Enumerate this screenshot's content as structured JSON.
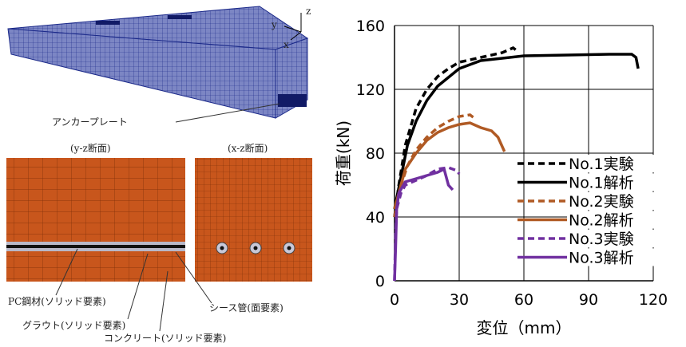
{
  "chart_data": {
    "type": "line",
    "xlabel": "変位（mm）",
    "ylabel": "荷重(kN)",
    "xlim": [
      0,
      120
    ],
    "xticks": [
      0,
      30,
      60,
      90,
      120
    ],
    "ylim": [
      0,
      160
    ],
    "yticks": [
      0,
      40,
      80,
      120,
      160
    ],
    "grid": true,
    "legend": "lower right",
    "series": [
      {
        "name": "No.1実験",
        "color": "#000000",
        "dashed": true,
        "x": [
          0,
          2,
          5,
          10,
          15,
          20,
          25,
          30,
          40,
          50,
          55,
          57
        ],
        "values": [
          40,
          60,
          85,
          108,
          120,
          128,
          133,
          137,
          140,
          143,
          146,
          144
        ]
      },
      {
        "name": "No.1解析",
        "color": "#000000",
        "dashed": false,
        "x": [
          0,
          3,
          6,
          10,
          15,
          20,
          30,
          40,
          60,
          80,
          100,
          110,
          112,
          113
        ],
        "values": [
          45,
          65,
          85,
          100,
          113,
          122,
          133,
          138,
          141,
          141.5,
          142,
          142,
          140,
          133
        ]
      },
      {
        "name": "No.2実験",
        "color": "#b05a24",
        "dashed": true,
        "x": [
          0,
          3,
          6,
          10,
          15,
          20,
          25,
          30,
          35,
          37
        ],
        "values": [
          40,
          60,
          72,
          82,
          90,
          96,
          100,
          103,
          104,
          102
        ]
      },
      {
        "name": "No.2解析",
        "color": "#b05a24",
        "dashed": false,
        "x": [
          0,
          5,
          10,
          15,
          20,
          25,
          30,
          35,
          40,
          45,
          48,
          51
        ],
        "values": [
          45,
          70,
          80,
          88,
          93,
          96,
          98,
          99,
          96,
          94,
          90,
          81
        ]
      },
      {
        "name": "No.3実験",
        "color": "#7030a0",
        "dashed": true,
        "x": [
          0,
          0.5,
          1,
          3,
          5,
          10,
          15,
          20,
          25,
          27,
          29,
          30
        ],
        "values": [
          0,
          30,
          45,
          55,
          60,
          63,
          66,
          70,
          71,
          70,
          69,
          67
        ]
      },
      {
        "name": "No.3解析",
        "color": "#7030a0",
        "dashed": false,
        "x": [
          0,
          0.5,
          1,
          2,
          5,
          10,
          15,
          20,
          23,
          25,
          27
        ],
        "values": [
          0,
          20,
          45,
          55,
          62,
          64,
          66,
          68,
          70,
          60,
          57
        ]
      }
    ]
  },
  "figure": {
    "axis_x": "x",
    "axis_y": "y",
    "axis_z": "z",
    "anchor_plate": "アンカープレート",
    "yz_section": "(y-z断面)",
    "xz_section": "(x-z断面)",
    "pc_steel": "PC鋼材(ソリッド要素)",
    "grout": "グラウト(ソリッド要素)",
    "concrete": "コンクリート(ソリッド要素)",
    "sheath": "シース管(面要素)"
  }
}
